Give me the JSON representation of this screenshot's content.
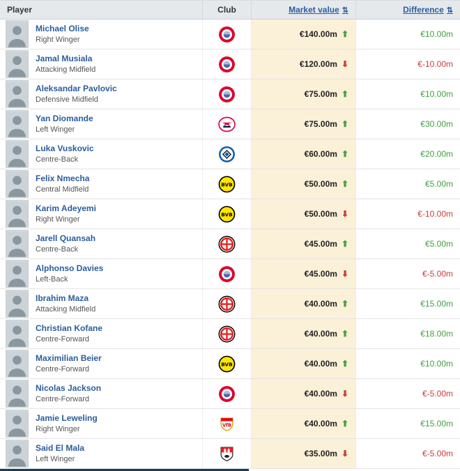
{
  "table": {
    "headers": {
      "player": "Player",
      "club": "Club",
      "market_value": "Market value",
      "difference": "Difference",
      "sort_icon": "⇅"
    }
  },
  "icons": {
    "trend_up": "⬆",
    "trend_down": "⬇"
  },
  "colors": {
    "link_blue": "#2a5d9c",
    "positive_green": "#3fa03f",
    "negative_red": "#ce3a3a",
    "market_value_bg": "#fbf0d8",
    "header_bg": "#e6e9ec"
  },
  "rows": [
    {
      "name": "Michael Olise",
      "position": "Right Winger",
      "club": "bayern-munich",
      "market_value": "€140.00m",
      "trend": "up",
      "difference": "€10.00m"
    },
    {
      "name": "Jamal Musiala",
      "position": "Attacking Midfield",
      "club": "bayern-munich",
      "market_value": "€120.00m",
      "trend": "down",
      "difference": "€-10.00m"
    },
    {
      "name": "Aleksandar Pavlovic",
      "position": "Defensive Midfield",
      "club": "bayern-munich",
      "market_value": "€75.00m",
      "trend": "up",
      "difference": "€10.00m"
    },
    {
      "name": "Yan Diomande",
      "position": "Left Winger",
      "club": "rb-leipzig",
      "market_value": "€75.00m",
      "trend": "up",
      "difference": "€30.00m"
    },
    {
      "name": "Luka Vuskovic",
      "position": "Centre-Back",
      "club": "hamburger-sv",
      "market_value": "€60.00m",
      "trend": "up",
      "difference": "€20.00m"
    },
    {
      "name": "Felix Nmecha",
      "position": "Central Midfield",
      "club": "borussia-dortmund",
      "market_value": "€50.00m",
      "trend": "up",
      "difference": "€5.00m"
    },
    {
      "name": "Karim Adeyemi",
      "position": "Right Winger",
      "club": "borussia-dortmund",
      "market_value": "€50.00m",
      "trend": "down",
      "difference": "€-10.00m"
    },
    {
      "name": "Jarell Quansah",
      "position": "Centre-Back",
      "club": "bayer-leverkusen",
      "market_value": "€45.00m",
      "trend": "up",
      "difference": "€5.00m"
    },
    {
      "name": "Alphonso Davies",
      "position": "Left-Back",
      "club": "bayern-munich",
      "market_value": "€45.00m",
      "trend": "down",
      "difference": "€-5.00m"
    },
    {
      "name": "Ibrahim Maza",
      "position": "Attacking Midfield",
      "club": "bayer-leverkusen",
      "market_value": "€40.00m",
      "trend": "up",
      "difference": "€15.00m"
    },
    {
      "name": "Christian Kofane",
      "position": "Centre-Forward",
      "club": "bayer-leverkusen",
      "market_value": "€40.00m",
      "trend": "up",
      "difference": "€18.00m"
    },
    {
      "name": "Maximilian Beier",
      "position": "Centre-Forward",
      "club": "borussia-dortmund",
      "market_value": "€40.00m",
      "trend": "up",
      "difference": "€10.00m"
    },
    {
      "name": "Nicolas Jackson",
      "position": "Centre-Forward",
      "club": "bayern-munich",
      "market_value": "€40.00m",
      "trend": "down",
      "difference": "€-5.00m"
    },
    {
      "name": "Jamie Leweling",
      "position": "Right Winger",
      "club": "vfb-stuttgart",
      "market_value": "€40.00m",
      "trend": "up",
      "difference": "€15.00m"
    },
    {
      "name": "Said El Mala",
      "position": "Left Winger",
      "club": "fc-koln",
      "market_value": "€35.00m",
      "trend": "down",
      "difference": "€-5.00m"
    }
  ]
}
